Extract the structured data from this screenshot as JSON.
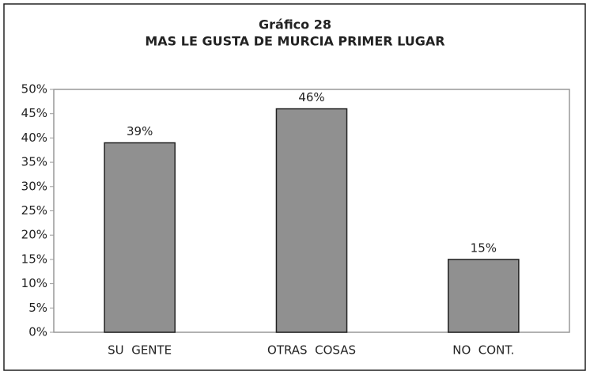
{
  "chart_data": {
    "type": "bar",
    "title": "Gráfico 28",
    "subtitle": "MAS LE GUSTA DE MURCIA PRIMER LUGAR",
    "categories": [
      "SU  GENTE",
      "OTRAS  COSAS",
      "NO  CONT."
    ],
    "values": [
      39,
      46,
      15
    ],
    "value_labels": [
      "39%",
      "46%",
      "15%"
    ],
    "color": "#909090",
    "ylim": [
      0,
      50
    ],
    "yticks": [
      {
        "value": 0,
        "label": "0%"
      },
      {
        "value": 5,
        "label": "5%"
      },
      {
        "value": 10,
        "label": "10%"
      },
      {
        "value": 15,
        "label": "15%"
      },
      {
        "value": 20,
        "label": "20%"
      },
      {
        "value": 25,
        "label": "25%"
      },
      {
        "value": 30,
        "label": "30%"
      },
      {
        "value": 35,
        "label": "35%"
      },
      {
        "value": 40,
        "label": "40%"
      },
      {
        "value": 45,
        "label": "45%"
      },
      {
        "value": 50,
        "label": "50%"
      }
    ],
    "grid": false
  }
}
